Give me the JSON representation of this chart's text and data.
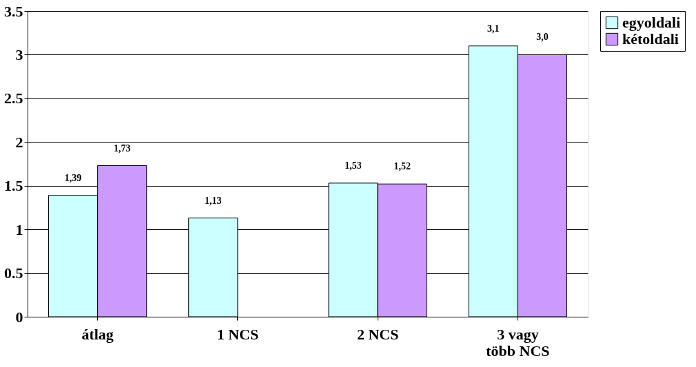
{
  "chart_data": {
    "type": "bar",
    "categories": [
      "átlag",
      "1 NCS",
      "2 NCS",
      "3 vagy több NCS"
    ],
    "series": [
      {
        "name": "egyoldali",
        "color": "#ccffff",
        "values": [
          1.39,
          1.13,
          1.53,
          3.1
        ],
        "value_labels": [
          "1,39",
          "1,13",
          "1,53",
          "3,1"
        ]
      },
      {
        "name": "kétoldali",
        "color": "#cc99ff",
        "values": [
          1.73,
          null,
          1.52,
          3.0
        ],
        "value_labels": [
          "1,73",
          null,
          "1,52",
          "3,0"
        ]
      }
    ],
    "ylim": [
      0,
      3.5
    ],
    "yticks": [
      0,
      0.5,
      1,
      1.5,
      2,
      2.5,
      3,
      3.5
    ],
    "grid": "y",
    "legend": "right"
  }
}
